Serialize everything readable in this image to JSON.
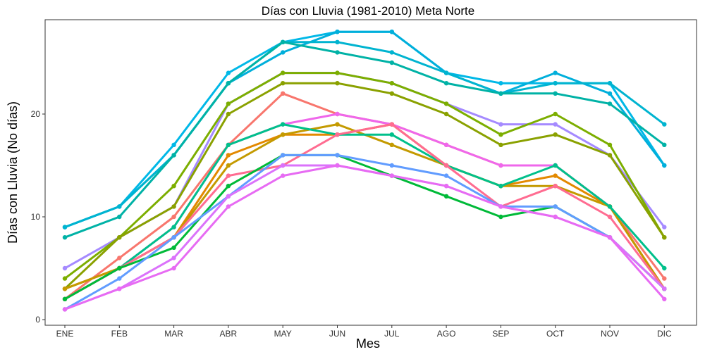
{
  "chart_data": {
    "type": "line",
    "title": "Días con Lluvia (1981-2010)  Meta Norte",
    "xlabel": "Mes",
    "ylabel": "Días con Lluvia (No días)",
    "categories": [
      "ENE",
      "FEB",
      "MAR",
      "ABR",
      "MAY",
      "JUN",
      "JUL",
      "AGO",
      "SEP",
      "OCT",
      "NOV",
      "DIC"
    ],
    "ylim": [
      0,
      29
    ],
    "yticks": [
      0,
      10,
      20
    ],
    "grid": false,
    "legend": "none",
    "series": [
      {
        "color": "#00B8E7",
        "values": [
          9,
          11,
          17,
          24,
          27,
          28,
          28,
          24,
          23,
          23,
          23,
          15
        ]
      },
      {
        "color": "#00AFDB",
        "values": [
          9,
          11,
          16,
          23,
          26,
          28,
          28,
          24,
          22,
          24,
          22,
          15
        ]
      },
      {
        "color": "#00B4D0",
        "values": [
          9,
          11,
          16,
          23,
          27,
          27,
          26,
          24,
          22,
          23,
          23,
          19
        ]
      },
      {
        "color": "#00B2A6",
        "values": [
          8,
          10,
          16,
          23,
          27,
          26,
          25,
          23,
          22,
          22,
          21,
          17
        ]
      },
      {
        "color": "#A58AFF",
        "values": [
          5,
          8,
          11,
          21,
          24,
          24,
          23,
          21,
          19,
          19,
          16,
          9
        ]
      },
      {
        "color": "#7CAE00",
        "values": [
          4,
          8,
          13,
          21,
          24,
          24,
          23,
          21,
          18,
          20,
          17,
          8
        ]
      },
      {
        "color": "#8AA100",
        "values": [
          3,
          8,
          11,
          20,
          23,
          23,
          22,
          20,
          17,
          18,
          16,
          8
        ]
      },
      {
        "color": "#F8766D",
        "values": [
          2,
          6,
          10,
          17,
          22,
          20,
          19,
          17,
          15,
          15,
          11,
          4
        ]
      },
      {
        "color": "#EF67EB",
        "values": [
          2,
          5,
          9,
          17,
          19,
          20,
          19,
          17,
          15,
          15,
          11,
          3
        ]
      },
      {
        "color": "#E38900",
        "values": [
          3,
          5,
          8,
          16,
          18,
          18,
          19,
          15,
          13,
          14,
          11,
          3
        ]
      },
      {
        "color": "#C49A00",
        "values": [
          3,
          5,
          8,
          15,
          18,
          19,
          17,
          15,
          13,
          13,
          11,
          3
        ]
      },
      {
        "color": "#00C08B",
        "values": [
          2,
          5,
          9,
          17,
          19,
          18,
          18,
          15,
          13,
          15,
          11,
          5
        ]
      },
      {
        "color": "#FF6C91",
        "values": [
          2,
          5,
          8,
          14,
          15,
          18,
          19,
          15,
          11,
          13,
          10,
          3
        ]
      },
      {
        "color": "#00BA38",
        "values": [
          2,
          5,
          7,
          13,
          16,
          16,
          14,
          12,
          10,
          11,
          8,
          3
        ]
      },
      {
        "color": "#619CFF",
        "values": [
          1,
          4,
          8,
          12,
          16,
          16,
          15,
          14,
          11,
          11,
          8,
          3
        ]
      },
      {
        "color": "#DB72FB",
        "values": [
          1,
          3,
          6,
          12,
          15,
          15,
          14,
          13,
          11,
          10,
          8,
          3
        ]
      },
      {
        "color": "#E76BF3",
        "values": [
          1,
          3,
          5,
          11,
          14,
          15,
          14,
          13,
          11,
          10,
          8,
          2
        ]
      }
    ]
  }
}
